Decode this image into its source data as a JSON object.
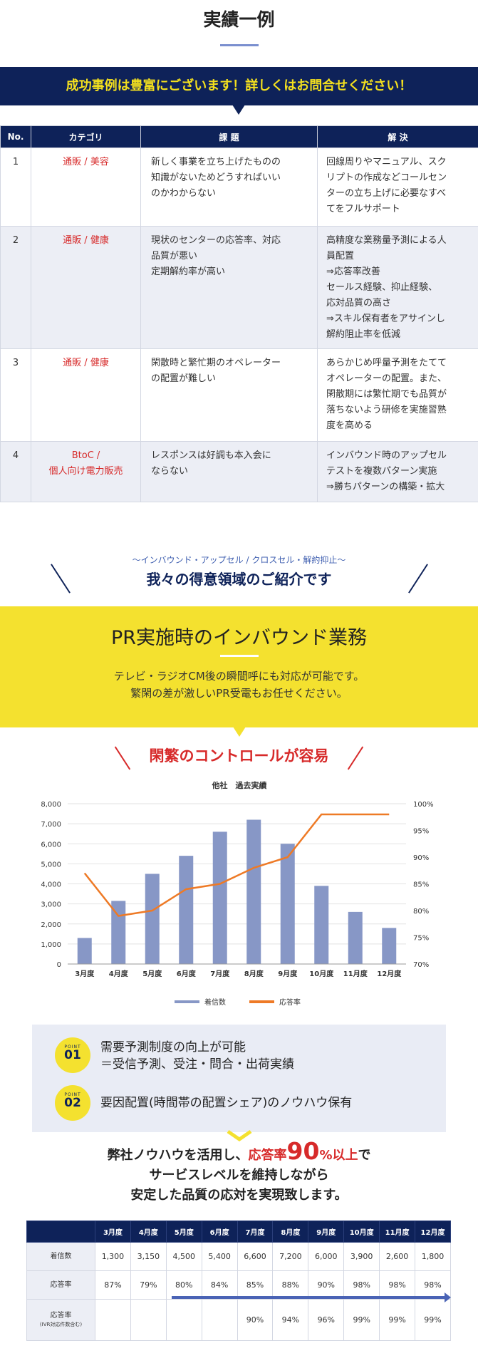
{
  "section1": {
    "title": "実績一例",
    "banner": "成功事例は豊富にございます！詳しくはお問合せください！",
    "headers": [
      "No.",
      "カテゴリ",
      "課 題",
      "解 決"
    ],
    "rows": [
      {
        "no": "1",
        "cat": [
          "通販 / 美容"
        ],
        "prob": [
          "新しく事業を立ち上げたものの",
          "知識がないためどうすればいい",
          "のかわからない"
        ],
        "sol": [
          "回線周りやマニュアル、スク",
          "リプトの作成などコールセン",
          "ターの立ち上げに必要なすべ",
          "てをフルサポート"
        ]
      },
      {
        "no": "2",
        "cat": [
          "通販 / 健康"
        ],
        "prob": [
          "現状のセンターの応答率、対応",
          "品質が悪い",
          "定期解約率が高い"
        ],
        "sol": [
          "高精度な業務量予測による人",
          "員配置",
          "⇒応答率改善",
          "セールス経験、抑止経験、",
          "応対品質の高さ",
          "⇒スキル保有者をアサインし",
          "解約阻止率を低減"
        ]
      },
      {
        "no": "3",
        "cat": [
          "通販 / 健康"
        ],
        "prob": [
          "閑散時と繁忙期のオペレーター",
          "の配置が難しい"
        ],
        "sol": [
          "あらかじめ呼量予測をたてて",
          "オペレーターの配置。また、",
          "閑散期には繁忙期でも品質が",
          "落ちないよう研修を実施習熟",
          "度を高める"
        ]
      },
      {
        "no": "4",
        "cat": [
          "BtoC /",
          "個人向け電力販売"
        ],
        "prob": [
          "レスポンスは好調も本入会に",
          "ならない"
        ],
        "sol": [
          "インバウンド時のアップセル",
          "テストを複数パターン実施",
          "⇒勝ちパターンの構築・拡大"
        ]
      }
    ]
  },
  "section2": {
    "subtitle": "〜インバウンド・アップセル / クロスセル・解約抑止〜",
    "title": "我々の得意領域のご紹介です",
    "pr_title": "PR実施時のインバウンド業務",
    "pr_desc1": "テレビ・ラジオCM後の瞬間呼にも対応が可能です。",
    "pr_desc2": "繁閑の差が激しいPR受電もお任せください。",
    "busy_title": "閑繁のコントロールが容易"
  },
  "chart_data": {
    "type": "bar",
    "title": "他社　過去実績",
    "categories": [
      "3月度",
      "4月度",
      "5月度",
      "6月度",
      "7月度",
      "8月度",
      "9月度",
      "10月度",
      "11月度",
      "12月度"
    ],
    "series": [
      {
        "name": "着信数",
        "type": "bar",
        "axis": "left",
        "color": "#8797c6",
        "values": [
          1300,
          3150,
          4500,
          5400,
          6600,
          7200,
          6000,
          3900,
          2600,
          1800
        ]
      },
      {
        "name": "応答率",
        "type": "line",
        "axis": "right",
        "color": "#ee7a26",
        "values": [
          87,
          79,
          80,
          84,
          85,
          88,
          90,
          98,
          98,
          98
        ]
      }
    ],
    "yleft": {
      "min": 0,
      "max": 8000,
      "step": 1000,
      "ticks": [
        "0",
        "1,000",
        "2,000",
        "3,000",
        "4,000",
        "5,000",
        "6,000",
        "7,000",
        "8,000"
      ]
    },
    "yright": {
      "min": 70,
      "max": 100,
      "step": 5,
      "ticks": [
        "70%",
        "75%",
        "80%",
        "85%",
        "90%",
        "95%",
        "100%"
      ]
    },
    "grid": true,
    "legend": "bottom"
  },
  "points": [
    {
      "label": "POINT",
      "num": "01",
      "lines": [
        "需要予測制度の向上が可能",
        "＝受信予測、受注・問合・出荷実績"
      ]
    },
    {
      "label": "POINT",
      "num": "02",
      "lines": [
        "要因配置(時間帯の配置シェア)のノウハウ保有"
      ]
    }
  ],
  "conclusion": {
    "line1_pre": "弊社ノウハウを活用し、",
    "line1_red1": "応答率",
    "line1_big": "90",
    "line1_red2": "%以上",
    "line1_post": "で",
    "line2": "サービスレベルを維持しながら",
    "line3": "安定した品質の応対を実現致します。"
  },
  "monthly": {
    "headers": [
      "3月度",
      "4月度",
      "5月度",
      "6月度",
      "7月度",
      "8月度",
      "9月度",
      "10月度",
      "11月度",
      "12月度"
    ],
    "row1_label": "着信数",
    "row1": [
      "1,300",
      "3,150",
      "4,500",
      "5,400",
      "6,600",
      "7,200",
      "6,000",
      "3,900",
      "2,600",
      "1,800"
    ],
    "row2_label": "応答率",
    "row2": [
      "87%",
      "79%",
      "80%",
      "84%",
      "85%",
      "88%",
      "90%",
      "98%",
      "98%",
      "98%"
    ],
    "row3_label": "応答率",
    "row3_sub": "(IVR対応件数含む)",
    "row3": [
      "",
      "",
      "",
      "",
      "90%",
      "94%",
      "96%",
      "99%",
      "99%",
      "99%"
    ]
  }
}
